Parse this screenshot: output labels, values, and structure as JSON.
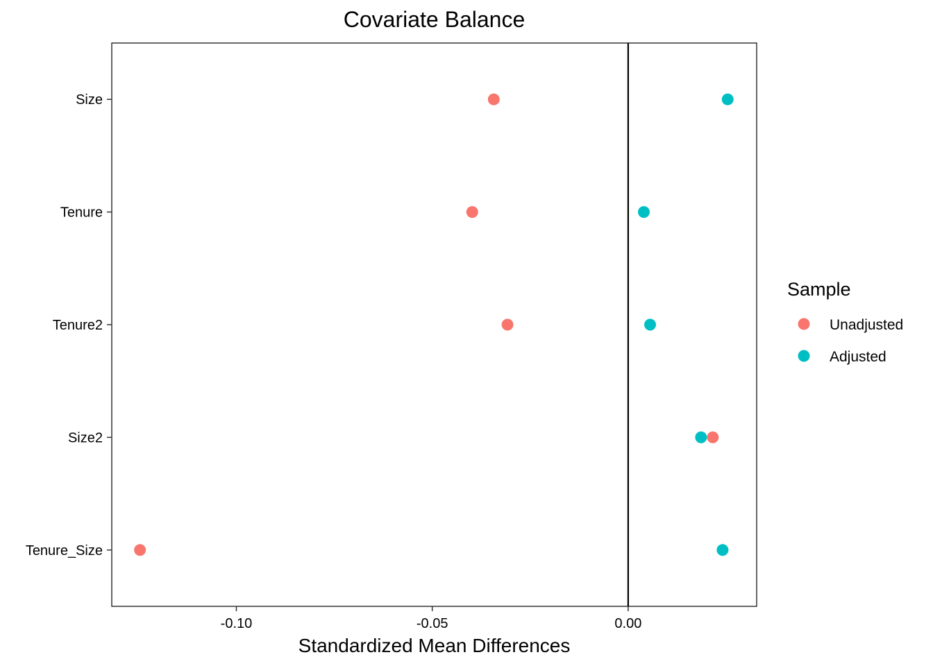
{
  "chart_data": {
    "type": "scatter",
    "title": "Covariate Balance",
    "xlabel": "Standardized Mean Differences",
    "ylabel": "",
    "xlim": [
      -0.1318,
      0.0328
    ],
    "x_ticks": [
      -0.1,
      -0.05,
      0.0
    ],
    "x_tick_labels": [
      "-0.10",
      "-0.05",
      "0.00"
    ],
    "categories": [
      "Size",
      "Tenure",
      "Tenure2",
      "Size2",
      "Tenure_Size"
    ],
    "reference_line_x": 0,
    "grid": false,
    "legend": {
      "title": "Sample",
      "position": "right"
    },
    "series": [
      {
        "name": "Unadjusted",
        "color": "#F8766D",
        "values": [
          -0.0343,
          -0.0398,
          -0.0308,
          0.0216,
          -0.1246
        ]
      },
      {
        "name": "Adjusted",
        "color": "#00BFC4",
        "values": [
          0.0254,
          0.004,
          0.0056,
          0.0186,
          0.0241
        ]
      }
    ]
  }
}
